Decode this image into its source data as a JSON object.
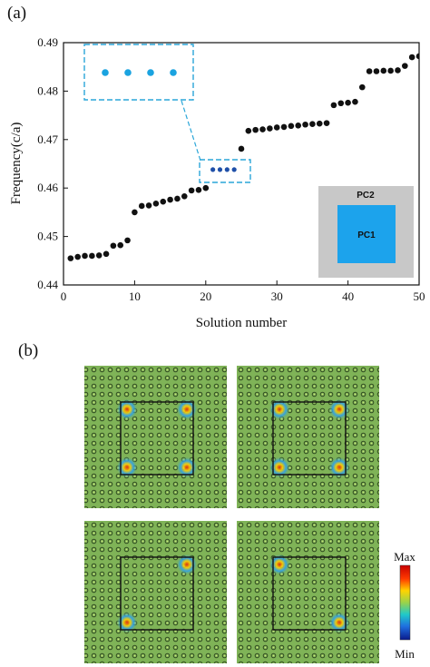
{
  "panels": {
    "a_label": "(a)",
    "b_label": "(b)"
  },
  "chart_data": {
    "type": "scatter",
    "title": "",
    "xlabel": "Solution number",
    "ylabel": "Frequency(c/a)",
    "xlim": [
      0,
      50
    ],
    "ylim": [
      0.44,
      0.49
    ],
    "xticks": [
      "0",
      "10",
      "20",
      "30",
      "40",
      "50"
    ],
    "yticks": [
      "0.44",
      "0.45",
      "0.46",
      "0.47",
      "0.48",
      "0.49"
    ],
    "grid": false,
    "marker_color": "#111111",
    "highlight_color": "#1f4fa8",
    "zoom_marker_color": "#1aa3e0",
    "zoom_box_color": "#2aa6d8",
    "x": [
      1,
      2,
      3,
      4,
      5,
      6,
      7,
      8,
      9,
      10,
      11,
      12,
      13,
      14,
      15,
      16,
      17,
      18,
      19,
      20,
      21,
      22,
      23,
      24,
      25,
      26,
      27,
      28,
      29,
      30,
      31,
      32,
      33,
      34,
      35,
      36,
      37,
      38,
      39,
      40,
      41,
      42,
      43,
      44,
      45,
      46,
      47,
      48,
      49,
      50
    ],
    "y": [
      0.4455,
      0.4458,
      0.446,
      0.446,
      0.4461,
      0.4464,
      0.4481,
      0.4482,
      0.4492,
      0.455,
      0.4563,
      0.4564,
      0.4568,
      0.4572,
      0.4576,
      0.4578,
      0.4583,
      0.4595,
      0.4596,
      0.46,
      0.4638,
      0.4638,
      0.4638,
      0.4638,
      0.4681,
      0.4718,
      0.472,
      0.4721,
      0.4723,
      0.4725,
      0.4726,
      0.4728,
      0.4729,
      0.4731,
      0.4732,
      0.4733,
      0.4734,
      0.4771,
      0.4775,
      0.4776,
      0.4778,
      0.4808,
      0.4841,
      0.4841,
      0.4842,
      0.4842,
      0.4843,
      0.4852,
      0.487,
      0.4872
    ],
    "highlight_indices": [
      20,
      21,
      22,
      23
    ],
    "inset": {
      "outer_label": "PC2",
      "inner_label": "PC1",
      "outer_color": "#c8c8c8",
      "inner_color": "#1ca3ec"
    }
  },
  "field_maps": {
    "colorbar": {
      "max_label": "Max",
      "min_label": "Min"
    },
    "background_color": "#7fb357",
    "square_outline_color": "#111111",
    "maps": [
      {
        "name": "mode-1",
        "hotspots": [
          "top-left",
          "top-right",
          "bottom-left",
          "bottom-right"
        ]
      },
      {
        "name": "mode-2",
        "hotspots": [
          "top-left",
          "top-right",
          "bottom-left",
          "bottom-right"
        ]
      },
      {
        "name": "mode-3",
        "hotspots": [
          "top-right",
          "bottom-left"
        ]
      },
      {
        "name": "mode-4",
        "hotspots": [
          "top-left",
          "bottom-right"
        ]
      }
    ]
  }
}
